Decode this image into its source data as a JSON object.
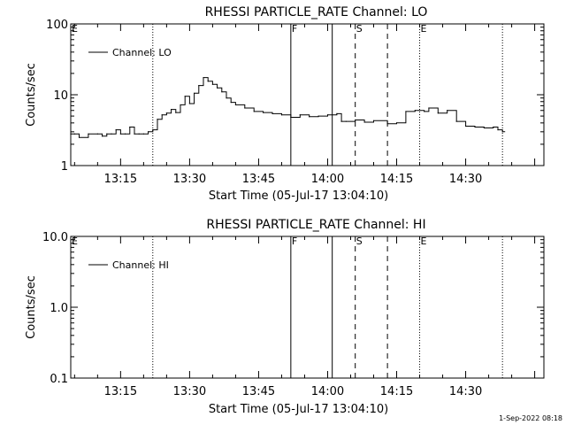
{
  "footer": {
    "timestamp": "1-Sep-2022 08:18"
  },
  "chart_data": [
    {
      "type": "line",
      "title": "RHESSI PARTICLE_RATE Channel: LO",
      "xlabel": "Start Time (05-Jul-17 13:04:10)",
      "ylabel": "Counts/sec",
      "yscale": "log",
      "ylim": [
        1,
        100
      ],
      "xlim": [
        "13:04:10",
        "14:47:00"
      ],
      "y_ticks": [
        "1",
        "10",
        "100"
      ],
      "x_ticks": [
        "13:15",
        "13:30",
        "13:45",
        "14:00",
        "14:15",
        "14:30"
      ],
      "legend": {
        "entries": [
          "Channel: LO"
        ],
        "placement": "top-left"
      },
      "markers": [
        {
          "label": "E",
          "time": "13:04:10",
          "style": "none"
        },
        {
          "label": "",
          "time": "13:22:00",
          "style": "dotted"
        },
        {
          "label": "F",
          "time": "13:52:00",
          "style": "solid"
        },
        {
          "label": "",
          "time": "14:01:00",
          "style": "solid"
        },
        {
          "label": "S",
          "time": "14:06:00",
          "style": "dashed"
        },
        {
          "label": "",
          "time": "14:13:00",
          "style": "dashed"
        },
        {
          "label": "E",
          "time": "14:20:00",
          "style": "dotted"
        },
        {
          "label": "",
          "time": "14:38:00",
          "style": "dotted"
        }
      ],
      "series": [
        {
          "name": "Channel: LO",
          "x": [
            "13:04:10",
            "13:05:00",
            "13:06:00",
            "13:08:00",
            "13:10:00",
            "13:11:00",
            "13:12:00",
            "13:13:00",
            "13:14:00",
            "13:15:00",
            "13:16:00",
            "13:17:00",
            "13:18:00",
            "13:19:00",
            "13:20:00",
            "13:21:00",
            "13:22:00",
            "13:23:00",
            "13:24:00",
            "13:25:00",
            "13:26:00",
            "13:27:00",
            "13:28:00",
            "13:29:00",
            "13:30:00",
            "13:31:00",
            "13:32:00",
            "13:33:00",
            "13:34:00",
            "13:35:00",
            "13:36:00",
            "13:37:00",
            "13:38:00",
            "13:39:00",
            "13:40:00",
            "13:42:00",
            "13:44:00",
            "13:46:00",
            "13:48:00",
            "13:50:00",
            "13:52:00",
            "13:54:00",
            "13:56:00",
            "13:58:00",
            "14:00:00",
            "14:02:00",
            "14:03:00",
            "14:04:00",
            "14:06:00",
            "14:08:00",
            "14:10:00",
            "14:13:00",
            "14:15:00",
            "14:17:00",
            "14:19:00",
            "14:21:00",
            "14:22:00",
            "14:24:00",
            "14:26:00",
            "14:28:00",
            "14:30:00",
            "14:32:00",
            "14:34:00",
            "14:36:00",
            "14:37:00",
            "14:38:00"
          ],
          "y": [
            2.8,
            2.8,
            2.5,
            2.8,
            2.8,
            2.6,
            2.8,
            2.8,
            3.2,
            2.8,
            2.8,
            3.5,
            2.8,
            2.8,
            2.8,
            3.0,
            3.2,
            4.5,
            5.2,
            5.5,
            6.2,
            5.6,
            7.2,
            9.5,
            7.5,
            10.5,
            13.5,
            17.5,
            15.5,
            14.0,
            12.5,
            11.0,
            9.0,
            7.8,
            7.2,
            6.5,
            5.8,
            5.6,
            5.4,
            5.2,
            4.8,
            5.2,
            4.9,
            5.0,
            5.2,
            5.4,
            4.2,
            4.2,
            4.4,
            4.1,
            4.3,
            3.9,
            4.0,
            5.8,
            6.0,
            5.8,
            6.5,
            5.5,
            6.0,
            4.2,
            3.6,
            3.5,
            3.4,
            3.5,
            3.2,
            3.0
          ]
        }
      ]
    },
    {
      "type": "line",
      "title": "RHESSI PARTICLE_RATE Channel: HI",
      "xlabel": "Start Time (05-Jul-17 13:04:10)",
      "ylabel": "Counts/sec",
      "yscale": "log",
      "ylim": [
        0.1,
        10
      ],
      "xlim": [
        "13:04:10",
        "14:47:00"
      ],
      "y_ticks": [
        "0.1",
        "1.0",
        "10.0"
      ],
      "x_ticks": [
        "13:15",
        "13:30",
        "13:45",
        "14:00",
        "14:15",
        "14:30"
      ],
      "legend": {
        "entries": [
          "Channel: HI"
        ],
        "placement": "top-left"
      },
      "markers": [
        {
          "label": "E",
          "time": "13:04:10",
          "style": "none"
        },
        {
          "label": "",
          "time": "13:22:00",
          "style": "dotted"
        },
        {
          "label": "F",
          "time": "13:52:00",
          "style": "solid"
        },
        {
          "label": "",
          "time": "14:01:00",
          "style": "solid"
        },
        {
          "label": "S",
          "time": "14:06:00",
          "style": "dashed"
        },
        {
          "label": "",
          "time": "14:13:00",
          "style": "dashed"
        },
        {
          "label": "E",
          "time": "14:20:00",
          "style": "dotted"
        },
        {
          "label": "",
          "time": "14:38:00",
          "style": "dotted"
        }
      ],
      "series": [
        {
          "name": "Channel: HI",
          "x": [],
          "y": []
        }
      ]
    }
  ]
}
